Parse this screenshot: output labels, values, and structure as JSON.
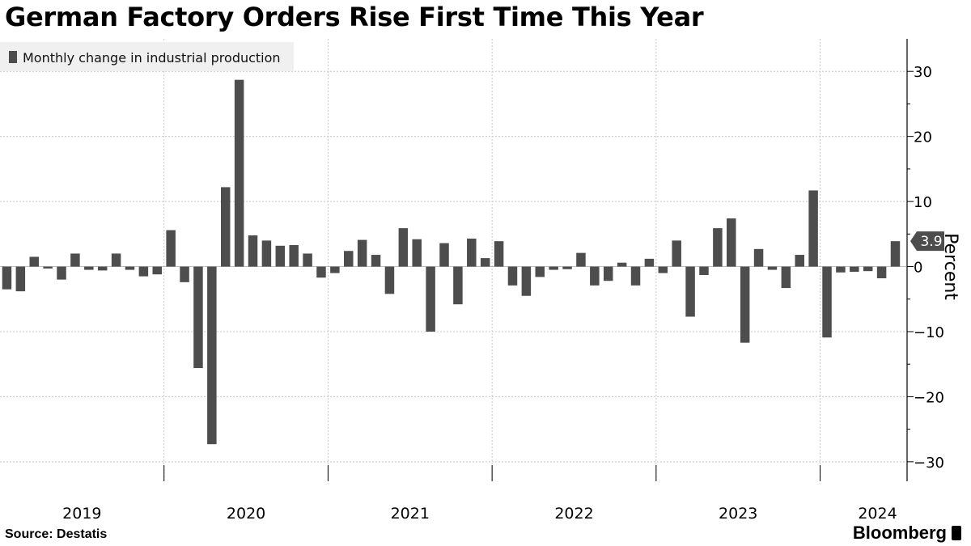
{
  "title": "German Factory Orders Rise First Time This Year",
  "source": "Source: Destatis",
  "brand": "Bloomberg",
  "chart_data": {
    "type": "bar",
    "legend": {
      "label": "Monthly change in industrial production",
      "placement": "top-left"
    },
    "ylabel": "Percent",
    "ylim": [
      -33,
      35
    ],
    "yticks": [
      30,
      20,
      10,
      0,
      -10,
      -20,
      -30
    ],
    "grid": true,
    "year_labels": [
      "2019",
      "2020",
      "2021",
      "2022",
      "2023",
      "2024"
    ],
    "start": "2019-01",
    "values": [
      -3.5,
      -3.8,
      1.5,
      -0.3,
      -2.0,
      2.0,
      -0.5,
      -0.6,
      2.0,
      -0.5,
      -1.5,
      -1.2,
      5.6,
      -2.4,
      -15.6,
      -27.3,
      12.2,
      28.7,
      4.8,
      4.0,
      3.2,
      3.3,
      2.0,
      -1.7,
      -1.0,
      2.4,
      4.1,
      1.8,
      -4.2,
      5.9,
      4.2,
      -10.0,
      3.6,
      -5.8,
      4.3,
      1.3,
      3.9,
      -2.9,
      -4.5,
      -1.6,
      -0.5,
      -0.4,
      2.1,
      -2.9,
      -2.2,
      0.6,
      -2.9,
      1.2,
      -1.0,
      4.0,
      -7.7,
      -1.3,
      5.9,
      7.4,
      -11.7,
      2.7,
      -0.5,
      -3.3,
      1.8,
      11.7,
      -10.9,
      -0.9,
      -0.8,
      -0.7,
      -1.8,
      3.9
    ],
    "last_value_label": "3.9",
    "colors": {
      "bar": "#4d4d4d",
      "grid": "#c8c8c8",
      "label_box": "#4d4d4d"
    }
  }
}
